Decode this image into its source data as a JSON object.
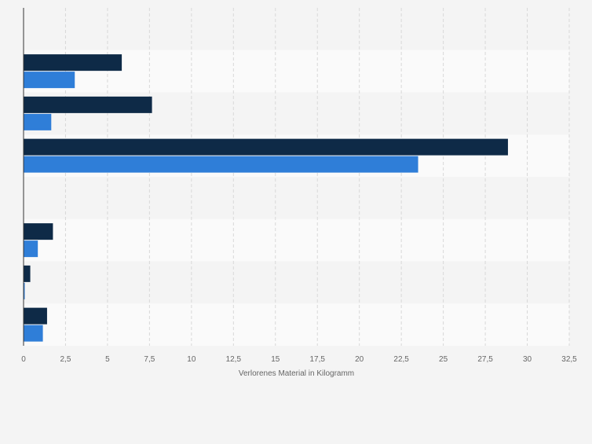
{
  "chart_data": {
    "type": "bar",
    "orientation": "horizontal",
    "title": "",
    "xlabel": "Verlorenes Material in Kilogramm",
    "ylabel": "",
    "xlim": [
      0,
      32.5
    ],
    "x_ticks": [
      "0",
      "2,5",
      "5",
      "7,5",
      "10",
      "12,5",
      "15",
      "17,5",
      "20",
      "22,5",
      "25",
      "27,5",
      "30",
      "32,5"
    ],
    "grid": true,
    "legend": "none",
    "categories": [
      "",
      "",
      "",
      "",
      "",
      "",
      "",
      ""
    ],
    "series": [
      {
        "color": "#0e2a47",
        "values": [
          0,
          5.85,
          7.65,
          28.85,
          0,
          1.75,
          0.4,
          1.4
        ]
      },
      {
        "color": "#2f7ed8",
        "values": [
          0,
          3.05,
          1.65,
          23.5,
          0,
          0.85,
          0.07,
          1.15
        ]
      }
    ]
  }
}
